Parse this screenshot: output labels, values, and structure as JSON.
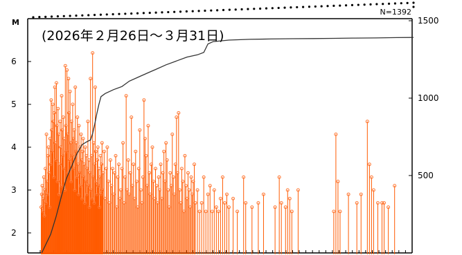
{
  "chart_data": {
    "type": "line",
    "title": "",
    "period_label": "(2026年２月26日～３月31日)",
    "count_label": "N=1392",
    "y_left": {
      "label": "M",
      "range": [
        1.5,
        6.5
      ],
      "ticks": [
        "2",
        "3",
        "4",
        "5",
        "6"
      ]
    },
    "y_right": {
      "range": [
        0,
        1500
      ],
      "ticks": [
        "500",
        "1000",
        "1500"
      ]
    },
    "x": {
      "range": [
        0,
        36
      ],
      "tick_count": 57
    },
    "series": [
      {
        "kind": "stem",
        "color": "#ff5a00",
        "marker_color": "#ff7733",
        "baseline": 1.5,
        "points": [
          [
            0.1,
            2.6
          ],
          [
            0.15,
            2.9
          ],
          [
            0.2,
            3.1
          ],
          [
            0.25,
            2.5
          ],
          [
            0.3,
            2.8
          ],
          [
            0.35,
            3.3
          ],
          [
            0.4,
            2.4
          ],
          [
            0.45,
            3.0
          ],
          [
            0.5,
            3.5
          ],
          [
            0.55,
            2.7
          ],
          [
            0.6,
            4.3
          ],
          [
            0.65,
            3.2
          ],
          [
            0.7,
            2.9
          ],
          [
            0.75,
            3.8
          ],
          [
            0.8,
            4.0
          ],
          [
            0.85,
            3.4
          ],
          [
            0.9,
            2.6
          ],
          [
            0.95,
            4.2
          ],
          [
            1.0,
            3.6
          ],
          [
            1.05,
            5.1
          ],
          [
            1.1,
            4.4
          ],
          [
            1.15,
            3.9
          ],
          [
            1.2,
            5.0
          ],
          [
            1.25,
            4.6
          ],
          [
            1.3,
            3.3
          ],
          [
            1.35,
            4.8
          ],
          [
            1.4,
            5.4
          ],
          [
            1.45,
            4.1
          ],
          [
            1.5,
            3.7
          ],
          [
            1.55,
            5.5
          ],
          [
            1.6,
            4.5
          ],
          [
            1.65,
            3.2
          ],
          [
            1.7,
            4.9
          ],
          [
            1.75,
            4.3
          ],
          [
            1.8,
            2.9
          ],
          [
            1.85,
            3.6
          ],
          [
            1.9,
            4.6
          ],
          [
            1.95,
            4.0
          ],
          [
            2.0,
            3.1
          ],
          [
            2.05,
            5.2
          ],
          [
            2.1,
            4.4
          ],
          [
            2.15,
            3.8
          ],
          [
            2.2,
            4.7
          ],
          [
            2.25,
            3.5
          ],
          [
            2.3,
            4.2
          ],
          [
            2.35,
            3.0
          ],
          [
            2.4,
            5.9
          ],
          [
            2.45,
            4.5
          ],
          [
            2.5,
            3.9
          ],
          [
            2.55,
            5.8
          ],
          [
            2.6,
            4.3
          ],
          [
            2.65,
            3.4
          ],
          [
            2.7,
            5.6
          ],
          [
            2.75,
            4.8
          ],
          [
            2.8,
            3.7
          ],
          [
            2.85,
            5.3
          ],
          [
            2.9,
            4.1
          ],
          [
            2.95,
            3.2
          ],
          [
            3.0,
            4.6
          ],
          [
            3.05,
            3.8
          ],
          [
            3.1,
            5.0
          ],
          [
            3.15,
            4.2
          ],
          [
            3.2,
            3.5
          ],
          [
            3.25,
            4.4
          ],
          [
            3.3,
            3.0
          ],
          [
            3.35,
            5.4
          ],
          [
            3.4,
            3.9
          ],
          [
            3.45,
            4.1
          ],
          [
            3.5,
            3.3
          ],
          [
            3.55,
            4.7
          ],
          [
            3.6,
            3.6
          ],
          [
            3.65,
            2.9
          ],
          [
            3.7,
            4.5
          ],
          [
            3.75,
            3.4
          ],
          [
            3.8,
            4.0
          ],
          [
            3.85,
            3.1
          ],
          [
            3.9,
            4.3
          ],
          [
            3.95,
            3.7
          ],
          [
            4.0,
            2.8
          ],
          [
            4.05,
            3.9
          ],
          [
            4.1,
            4.2
          ],
          [
            4.15,
            3.3
          ],
          [
            4.2,
            3.6
          ],
          [
            4.25,
            2.7
          ],
          [
            4.3,
            4.0
          ],
          [
            4.35,
            3.2
          ],
          [
            4.4,
            3.8
          ],
          [
            4.45,
            2.9
          ],
          [
            4.5,
            3.5
          ],
          [
            4.55,
            4.6
          ],
          [
            4.6,
            3.1
          ],
          [
            4.65,
            3.7
          ],
          [
            4.7,
            2.6
          ],
          [
            4.75,
            3.4
          ],
          [
            4.8,
            5.6
          ],
          [
            4.85,
            3.0
          ],
          [
            4.9,
            3.8
          ],
          [
            4.95,
            2.8
          ],
          [
            5.0,
            6.2
          ],
          [
            5.05,
            3.3
          ],
          [
            5.1,
            4.1
          ],
          [
            5.15,
            2.7
          ],
          [
            5.2,
            3.6
          ],
          [
            5.25,
            5.4
          ],
          [
            5.3,
            3.9
          ],
          [
            5.35,
            3.2
          ],
          [
            5.4,
            2.9
          ],
          [
            5.45,
            3.7
          ],
          [
            5.5,
            4.0
          ],
          [
            5.55,
            3.1
          ],
          [
            5.6,
            3.5
          ],
          [
            5.65,
            2.6
          ],
          [
            5.7,
            3.3
          ],
          [
            5.75,
            3.8
          ],
          [
            5.8,
            2.9
          ],
          [
            5.85,
            3.6
          ],
          [
            5.9,
            4.1
          ],
          [
            5.95,
            3.0
          ],
          [
            6.0,
            3.4
          ],
          [
            6.1,
            3.9
          ],
          [
            6.2,
            2.8
          ],
          [
            6.3,
            3.5
          ],
          [
            6.4,
            4.0
          ],
          [
            6.5,
            3.2
          ],
          [
            6.6,
            2.7
          ],
          [
            6.7,
            3.7
          ],
          [
            6.8,
            3.1
          ],
          [
            6.9,
            3.5
          ],
          [
            7.0,
            2.9
          ],
          [
            7.1,
            3.4
          ],
          [
            7.2,
            3.8
          ],
          [
            7.3,
            2.6
          ],
          [
            7.4,
            3.3
          ],
          [
            7.5,
            3.6
          ],
          [
            7.6,
            2.8
          ],
          [
            7.7,
            3.0
          ],
          [
            7.8,
            3.5
          ],
          [
            7.9,
            4.1
          ],
          [
            8.0,
            2.7
          ],
          [
            8.1,
            3.3
          ],
          [
            8.2,
            5.2
          ],
          [
            8.3,
            3.0
          ],
          [
            8.4,
            3.7
          ],
          [
            8.5,
            2.9
          ],
          [
            8.6,
            3.4
          ],
          [
            8.7,
            4.7
          ],
          [
            8.8,
            3.1
          ],
          [
            8.9,
            3.6
          ],
          [
            9.0,
            2.8
          ],
          [
            9.1,
            3.9
          ],
          [
            9.2,
            3.2
          ],
          [
            9.3,
            2.6
          ],
          [
            9.4,
            3.5
          ],
          [
            9.5,
            4.4
          ],
          [
            9.6,
            3.0
          ],
          [
            9.7,
            2.7
          ],
          [
            9.8,
            3.3
          ],
          [
            9.9,
            5.1
          ],
          [
            10.0,
            4.2
          ],
          [
            10.1,
            3.8
          ],
          [
            10.2,
            3.1
          ],
          [
            10.3,
            4.5
          ],
          [
            10.4,
            3.4
          ],
          [
            10.5,
            2.9
          ],
          [
            10.6,
            3.6
          ],
          [
            10.7,
            4.0
          ],
          [
            10.8,
            3.2
          ],
          [
            10.9,
            2.8
          ],
          [
            11.0,
            3.5
          ],
          [
            11.1,
            3.1
          ],
          [
            11.2,
            2.7
          ],
          [
            11.3,
            3.3
          ],
          [
            11.4,
            3.0
          ],
          [
            11.5,
            3.6
          ],
          [
            11.6,
            2.8
          ],
          [
            11.7,
            3.4
          ],
          [
            11.8,
            3.9
          ],
          [
            11.9,
            3.2
          ],
          [
            12.0,
            4.1
          ],
          [
            12.1,
            3.7
          ],
          [
            12.2,
            3.0
          ],
          [
            12.3,
            2.6
          ],
          [
            12.4,
            3.4
          ],
          [
            12.5,
            3.1
          ],
          [
            12.6,
            4.3
          ],
          [
            12.7,
            3.3
          ],
          [
            12.8,
            2.9
          ],
          [
            12.9,
            3.6
          ],
          [
            13.0,
            4.7
          ],
          [
            13.1,
            3.4
          ],
          [
            13.2,
            4.8
          ],
          [
            13.3,
            3.0
          ],
          [
            13.4,
            2.7
          ],
          [
            13.5,
            3.5
          ],
          [
            13.6,
            3.2
          ],
          [
            13.7,
            2.5
          ],
          [
            13.8,
            3.8
          ],
          [
            13.9,
            3.1
          ],
          [
            14.0,
            2.8
          ],
          [
            14.1,
            3.4
          ],
          [
            14.2,
            3.0
          ],
          [
            14.3,
            2.6
          ],
          [
            14.4,
            3.3
          ],
          [
            14.5,
            2.9
          ],
          [
            14.6,
            3.2
          ],
          [
            14.7,
            3.6
          ],
          [
            14.8,
            2.7
          ],
          [
            15.0,
            3.0
          ],
          [
            15.2,
            2.5
          ],
          [
            15.4,
            2.7
          ],
          [
            15.6,
            3.3
          ],
          [
            15.8,
            2.5
          ],
          [
            16.0,
            2.9
          ],
          [
            16.2,
            3.1
          ],
          [
            16.4,
            2.5
          ],
          [
            16.6,
            3.0
          ],
          [
            16.8,
            2.6
          ],
          [
            17.0,
            2.5
          ],
          [
            17.2,
            2.8
          ],
          [
            17.4,
            3.3
          ],
          [
            17.6,
            2.7
          ],
          [
            17.8,
            2.9
          ],
          [
            18.0,
            2.6
          ],
          [
            18.4,
            2.8
          ],
          [
            18.8,
            2.5
          ],
          [
            19.4,
            3.3
          ],
          [
            19.6,
            2.7
          ],
          [
            20.2,
            2.6
          ],
          [
            20.8,
            2.7
          ],
          [
            21.3,
            2.9
          ],
          [
            22.4,
            2.6
          ],
          [
            22.8,
            3.3
          ],
          [
            23.0,
            2.7
          ],
          [
            23.4,
            2.6
          ],
          [
            23.6,
            3.0
          ],
          [
            23.8,
            2.8
          ],
          [
            24.0,
            2.5
          ],
          [
            24.6,
            3.0
          ],
          [
            28.0,
            2.5
          ],
          [
            28.2,
            4.3
          ],
          [
            28.4,
            3.2
          ],
          [
            28.6,
            2.5
          ],
          [
            29.4,
            2.9
          ],
          [
            30.2,
            2.7
          ],
          [
            30.6,
            2.9
          ],
          [
            31.2,
            4.6
          ],
          [
            31.4,
            3.6
          ],
          [
            31.6,
            3.3
          ],
          [
            31.8,
            3.0
          ],
          [
            32.2,
            2.7
          ],
          [
            32.6,
            2.7
          ],
          [
            32.8,
            2.7
          ],
          [
            33.2,
            2.6
          ],
          [
            33.8,
            3.1
          ]
        ]
      },
      {
        "kind": "cumulative",
        "color": "#333333",
        "points": [
          [
            0.15,
            0
          ],
          [
            0.5,
            50
          ],
          [
            1.0,
            120
          ],
          [
            1.5,
            230
          ],
          [
            2.0,
            360
          ],
          [
            2.5,
            480
          ],
          [
            3.0,
            560
          ],
          [
            3.5,
            640
          ],
          [
            4.0,
            700
          ],
          [
            4.5,
            720
          ],
          [
            4.8,
            730
          ],
          [
            5.0,
            770
          ],
          [
            5.2,
            830
          ],
          [
            5.4,
            900
          ],
          [
            5.6,
            960
          ],
          [
            5.8,
            1010
          ],
          [
            6.2,
            1030
          ],
          [
            7.0,
            1055
          ],
          [
            7.8,
            1075
          ],
          [
            8.5,
            1110
          ],
          [
            9.5,
            1140
          ],
          [
            10.5,
            1170
          ],
          [
            11.0,
            1185
          ],
          [
            12.0,
            1215
          ],
          [
            13.0,
            1240
          ],
          [
            14.0,
            1265
          ],
          [
            15.0,
            1280
          ],
          [
            15.6,
            1295
          ],
          [
            16.0,
            1350
          ],
          [
            16.5,
            1365
          ],
          [
            18.0,
            1375
          ],
          [
            20.0,
            1380
          ],
          [
            22.0,
            1382
          ],
          [
            24.0,
            1384
          ],
          [
            26.0,
            1385
          ],
          [
            28.0,
            1386
          ],
          [
            30.0,
            1388
          ],
          [
            32.0,
            1389
          ],
          [
            34.0,
            1391
          ],
          [
            35.6,
            1392
          ]
        ]
      }
    ]
  }
}
